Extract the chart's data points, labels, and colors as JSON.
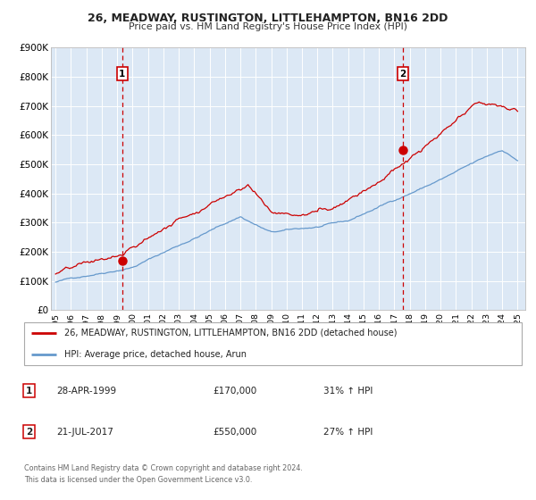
{
  "title": "26, MEADWAY, RUSTINGTON, LITTLEHAMPTON, BN16 2DD",
  "subtitle": "Price paid vs. HM Land Registry's House Price Index (HPI)",
  "bg_color": "#dce8f5",
  "legend_label_red": "26, MEADWAY, RUSTINGTON, LITTLEHAMPTON, BN16 2DD (detached house)",
  "legend_label_blue": "HPI: Average price, detached house, Arun",
  "footnote1": "Contains HM Land Registry data © Crown copyright and database right 2024.",
  "footnote2": "This data is licensed under the Open Government Licence v3.0.",
  "marker1_date": 1999.33,
  "marker1_value": 170000,
  "marker2_date": 2017.55,
  "marker2_value": 550000,
  "vline1_x": 1999.33,
  "vline2_x": 2017.55,
  "xmin": 1994.7,
  "xmax": 2025.5,
  "ymin": 0,
  "ymax": 900000,
  "yticks": [
    0,
    100000,
    200000,
    300000,
    400000,
    500000,
    600000,
    700000,
    800000,
    900000
  ],
  "ytick_labels": [
    "£0",
    "£100K",
    "£200K",
    "£300K",
    "£400K",
    "£500K",
    "£600K",
    "£700K",
    "£800K",
    "£900K"
  ],
  "xticks": [
    1995,
    1996,
    1997,
    1998,
    1999,
    2000,
    2001,
    2002,
    2003,
    2004,
    2005,
    2006,
    2007,
    2008,
    2009,
    2010,
    2011,
    2012,
    2013,
    2014,
    2015,
    2016,
    2017,
    2018,
    2019,
    2020,
    2021,
    2022,
    2023,
    2024,
    2025
  ],
  "red_color": "#cc0000",
  "blue_color": "#6699cc",
  "grid_color": "#ffffff",
  "spine_color": "#bbbbbb",
  "table_row1_label": "1",
  "table_row1_date": "28-APR-1999",
  "table_row1_price": "£170,000",
  "table_row1_hpi": "31% ↑ HPI",
  "table_row2_label": "2",
  "table_row2_date": "21-JUL-2017",
  "table_row2_price": "£550,000",
  "table_row2_hpi": "27% ↑ HPI"
}
